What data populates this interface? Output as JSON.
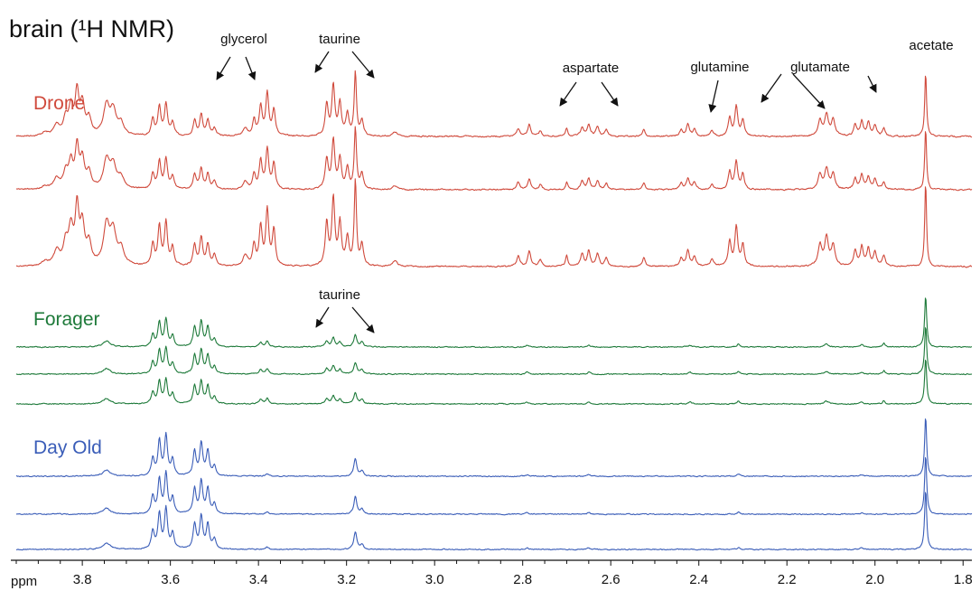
{
  "chart_data": {
    "type": "line",
    "title": "brain (¹H NMR)",
    "xlabel": "ppm",
    "xlim": [
      3.95,
      1.78
    ],
    "x_reversed": true,
    "ticks": [
      3.8,
      3.6,
      3.4,
      3.2,
      3.0,
      2.8,
      2.6,
      2.4,
      2.2,
      2.0,
      1.8
    ],
    "tick_labels": [
      "3.8",
      "3.6",
      "3.4",
      "3.2",
      "3.0",
      "2.8",
      "2.6",
      "2.4",
      "2.2",
      "2.0",
      "1.8"
    ],
    "groups": [
      {
        "name": "Drone",
        "color": "#d04a3c",
        "replicates": 3,
        "peak_scale": [
          0.75,
          0.72,
          1.0
        ]
      },
      {
        "name": "Forager",
        "color": "#1e7a3a",
        "replicates": 3,
        "peak_scale": [
          1.0,
          0.95,
          0.9
        ]
      },
      {
        "name": "Day Old",
        "color": "#3a5db8",
        "replicates": 3,
        "peak_scale": [
          1.0,
          1.0,
          1.0
        ]
      }
    ],
    "annotations": [
      {
        "label": "glycerol",
        "targets_ppm": [
          3.605,
          3.53
        ],
        "group": "Drone"
      },
      {
        "label": "taurine",
        "targets_ppm": [
          3.385,
          3.235
        ],
        "group": "Drone"
      },
      {
        "label": "aspartate",
        "targets_ppm": [
          2.79,
          2.655
        ],
        "group": "Drone"
      },
      {
        "label": "glutamine",
        "targets_ppm": [
          2.42
        ],
        "group": "Drone"
      },
      {
        "label": "glutamate",
        "targets_ppm": [
          2.31,
          2.11
        ],
        "group": "Drone"
      },
      {
        "label": "acetate",
        "targets_ppm": [
          1.885
        ],
        "group": "Drone"
      },
      {
        "label": "taurine",
        "targets_ppm": [
          3.385,
          3.235
        ],
        "group": "Forager"
      }
    ]
  }
}
